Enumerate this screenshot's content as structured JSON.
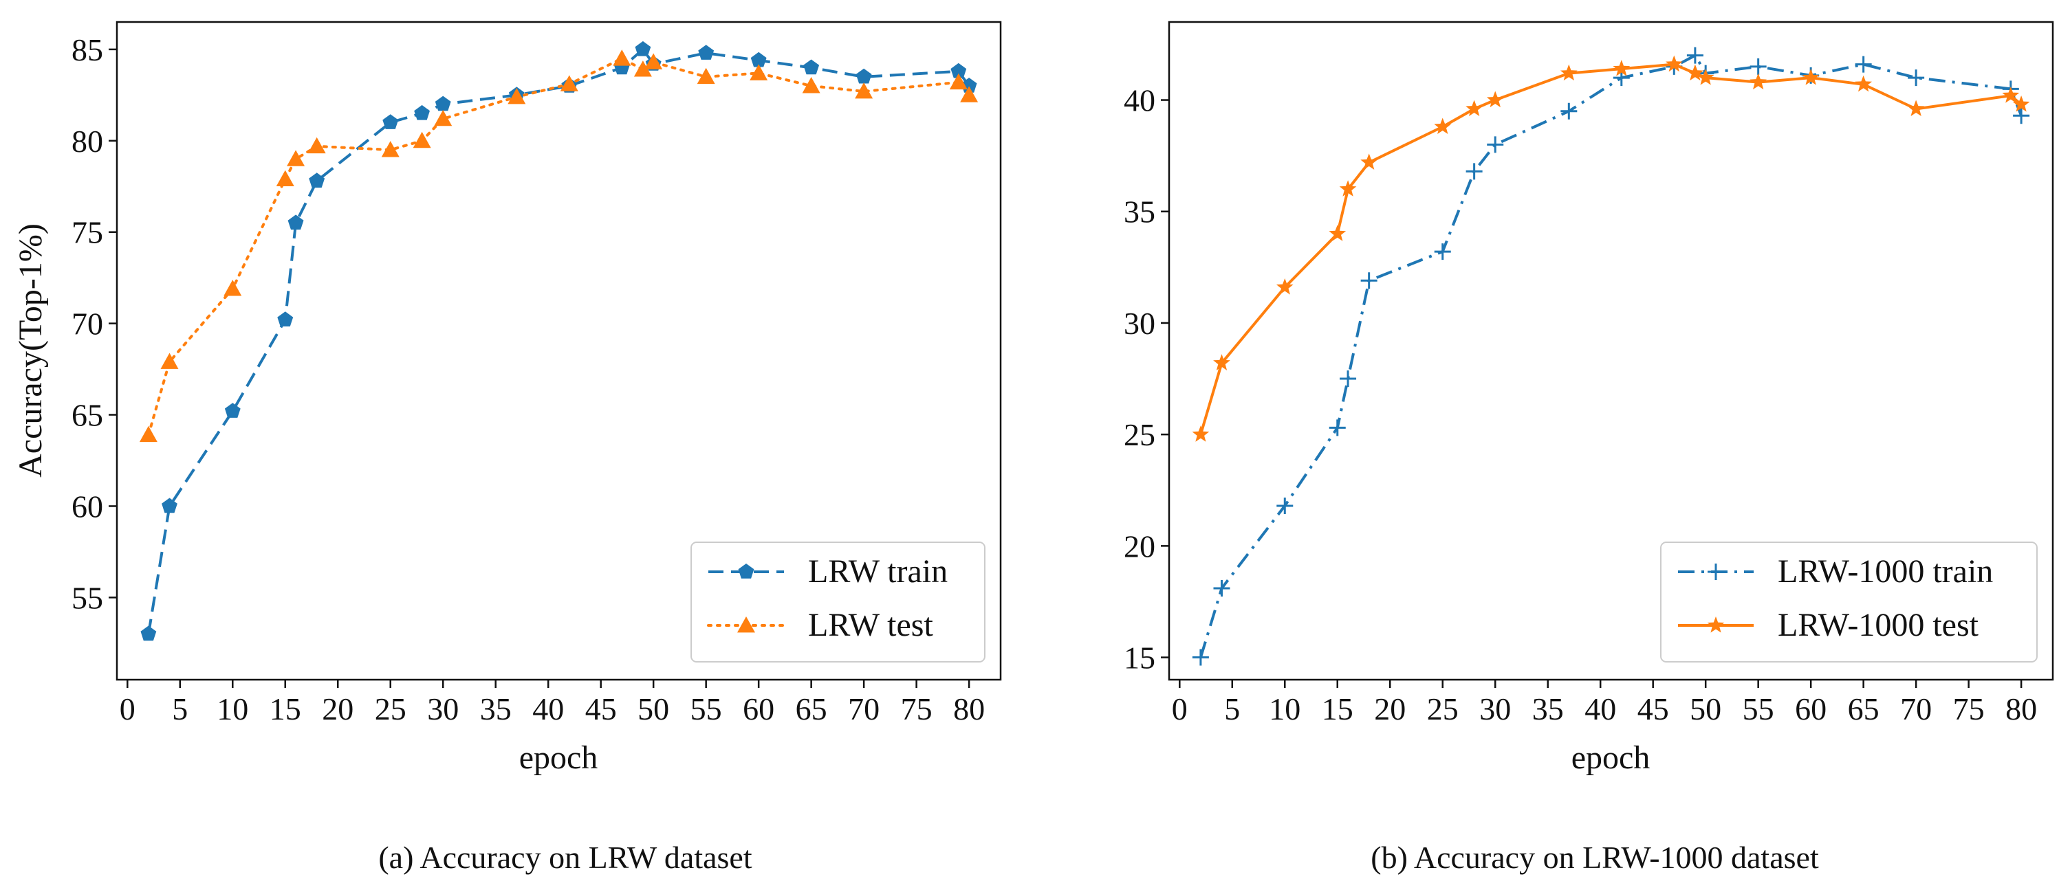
{
  "chart_data": [
    {
      "type": "line",
      "title": "",
      "caption": "(a) Accuracy on LRW dataset",
      "xlabel": "epoch",
      "ylabel": "Accuracy(Top-1%)",
      "xlim": [
        -1,
        83
      ],
      "ylim": [
        50.5,
        86.5
      ],
      "xticks": [
        0,
        5,
        10,
        15,
        20,
        25,
        30,
        35,
        40,
        45,
        50,
        55,
        60,
        65,
        70,
        75,
        80
      ],
      "yticks": [
        55,
        60,
        65,
        70,
        75,
        80,
        85
      ],
      "grid": false,
      "legend_position": "lower-right",
      "series": [
        {
          "name": "LRW train",
          "color": "#1f77b4",
          "line_style": "dashed",
          "marker": "pentagon",
          "x": [
            2,
            4,
            10,
            15,
            16,
            18,
            25,
            28,
            30,
            37,
            42,
            47,
            49,
            50,
            55,
            60,
            65,
            70,
            79,
            80
          ],
          "y": [
            53.0,
            60.0,
            65.2,
            70.2,
            75.5,
            77.8,
            81.0,
            81.5,
            82.0,
            82.5,
            83.0,
            84.0,
            85.0,
            84.2,
            84.8,
            84.4,
            84.0,
            83.5,
            83.8,
            83.0
          ]
        },
        {
          "name": "LRW test",
          "color": "#ff7f0e",
          "line_style": "dotted",
          "marker": "triangle",
          "x": [
            2,
            4,
            10,
            15,
            16,
            18,
            25,
            28,
            30,
            37,
            42,
            47,
            49,
            50,
            55,
            60,
            65,
            70,
            79,
            80
          ],
          "y": [
            63.9,
            67.9,
            71.9,
            77.9,
            79.0,
            79.7,
            79.5,
            80.0,
            81.2,
            82.4,
            83.1,
            84.5,
            83.9,
            84.3,
            83.5,
            83.7,
            83.0,
            82.7,
            83.2,
            82.5
          ]
        }
      ]
    },
    {
      "type": "line",
      "title": "",
      "caption": "(b) Accuracy on LRW-1000 dataset",
      "xlabel": "epoch",
      "ylabel": "",
      "xlim": [
        -1,
        83
      ],
      "ylim": [
        14,
        43.5
      ],
      "xticks": [
        0,
        5,
        10,
        15,
        20,
        25,
        30,
        35,
        40,
        45,
        50,
        55,
        60,
        65,
        70,
        75,
        80
      ],
      "yticks": [
        15,
        20,
        25,
        30,
        35,
        40
      ],
      "grid": false,
      "legend_position": "lower-right",
      "series": [
        {
          "name": "LRW-1000 train",
          "color": "#1f77b4",
          "line_style": "dashdot",
          "marker": "plus",
          "x": [
            2,
            4,
            10,
            15,
            16,
            18,
            25,
            28,
            30,
            37,
            42,
            47,
            49,
            50,
            55,
            60,
            65,
            70,
            79,
            80
          ],
          "y": [
            15.0,
            18.1,
            21.8,
            25.3,
            27.5,
            31.9,
            33.2,
            36.8,
            38.0,
            39.5,
            41.0,
            41.5,
            42.0,
            41.2,
            41.5,
            41.1,
            41.6,
            41.0,
            40.5,
            39.3
          ]
        },
        {
          "name": "LRW-1000 test",
          "color": "#ff7f0e",
          "line_style": "solid",
          "marker": "star",
          "x": [
            2,
            4,
            10,
            15,
            16,
            18,
            25,
            28,
            30,
            37,
            42,
            47,
            49,
            50,
            55,
            60,
            65,
            70,
            79,
            80
          ],
          "y": [
            25.0,
            28.2,
            31.6,
            34.0,
            36.0,
            37.2,
            38.8,
            39.6,
            40.0,
            41.2,
            41.4,
            41.6,
            41.2,
            41.0,
            40.8,
            41.0,
            40.7,
            39.6,
            40.2,
            39.8
          ]
        }
      ]
    }
  ]
}
